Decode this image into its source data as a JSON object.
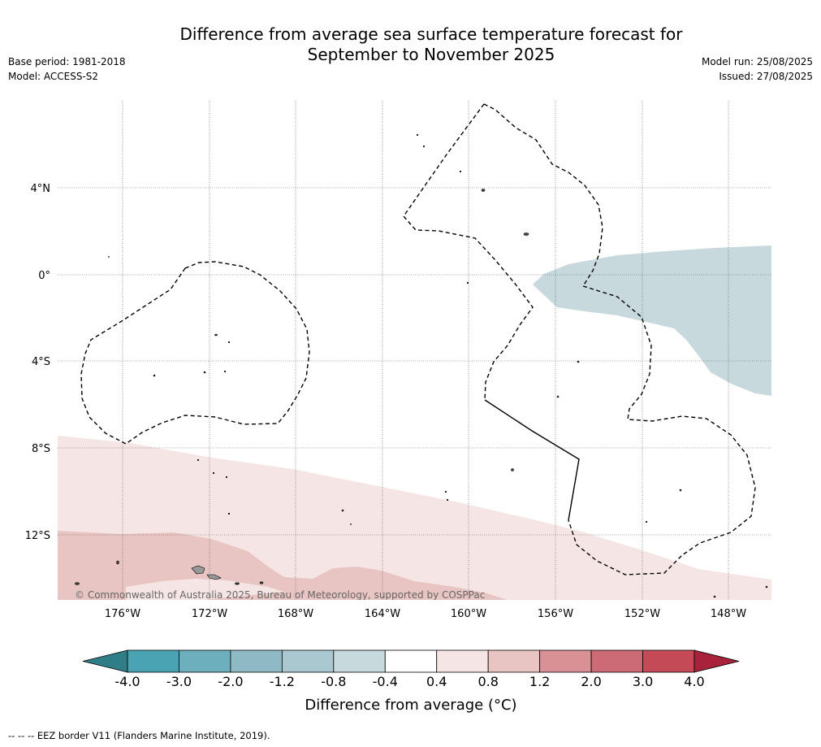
{
  "title": {
    "line1": "Difference from average sea surface temperature forecast for",
    "line2": "September to November 2025"
  },
  "meta": {
    "base_period": "Base period: 1981-2018",
    "model": "Model: ACCESS-S2",
    "model_run": "Model run: 25/08/2025",
    "issued": "Issued: 27/08/2025"
  },
  "map": {
    "lat_labels": [
      "4°N",
      "0°",
      "4°S",
      "8°S",
      "12°S"
    ],
    "lon_labels": [
      "176°W",
      "172°W",
      "168°W",
      "164°W",
      "160°W",
      "156°W",
      "152°W",
      "148°W"
    ],
    "copyright": "© Commonwealth of Australia 2025, Bureau of Meteorology, supported by COSPPac"
  },
  "legend": {
    "title": "Difference from average (°C)",
    "ticks": [
      "-4.0",
      "-3.0",
      "-2.0",
      "-1.2",
      "-0.8",
      "-0.4",
      "0.4",
      "0.8",
      "1.2",
      "2.0",
      "3.0",
      "4.0"
    ],
    "colors": [
      "#2f7d86",
      "#4aa3b2",
      "#6eafbd",
      "#8fbac5",
      "#aac8cf",
      "#c7d9dd",
      "#ffffff",
      "#f5e6e5",
      "#e8c5c2",
      "#d99196",
      "#cc6b76",
      "#c44a58",
      "#a8223c"
    ]
  },
  "footer": "-- -- -- EEZ border V11 (Flanders Marine Institute, 2019)."
}
